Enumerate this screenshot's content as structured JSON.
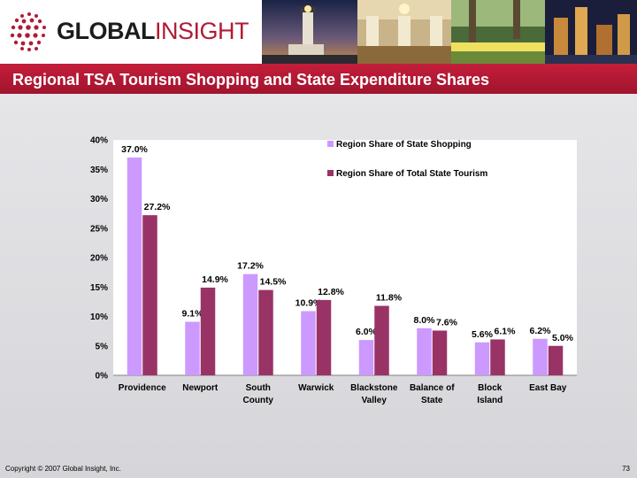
{
  "header": {
    "logo_word_1": "GLOBAL",
    "logo_word_2": "INSIGHT"
  },
  "title": "Regional TSA Tourism Shopping and State Expenditure Shares",
  "footer": {
    "copyright": "Copyright © 2007 Global Insight, Inc.",
    "page_number": "73"
  },
  "colors": {
    "brand_red": "#b01b36",
    "series_shopping": "#cc99ff",
    "series_tourism": "#993366"
  },
  "chart_data": {
    "type": "bar",
    "categories": [
      [
        "Providence"
      ],
      [
        "Newport"
      ],
      [
        "South",
        "County"
      ],
      [
        "Warwick"
      ],
      [
        "Blackstone",
        "Valley"
      ],
      [
        "Balance of",
        "State"
      ],
      [
        "Block",
        "Island"
      ],
      [
        "East Bay"
      ]
    ],
    "series": [
      {
        "name": "Region Share of State Shopping",
        "color": "#cc99ff",
        "values": [
          37.0,
          9.1,
          17.2,
          10.9,
          6.0,
          8.0,
          5.6,
          6.2
        ],
        "labels": [
          "37.0%",
          "9.1%",
          "17.2%",
          "10.9%",
          "6.0%",
          "8.0%",
          "5.6%",
          "6.2%"
        ]
      },
      {
        "name": "Region Share of Total State Tourism",
        "color": "#993366",
        "values": [
          27.2,
          14.9,
          14.5,
          12.8,
          11.8,
          7.6,
          6.1,
          5.0
        ],
        "labels": [
          "27.2%",
          "14.9%",
          "14.5%",
          "12.8%",
          "11.8%",
          "7.6%",
          "6.1%",
          "5.0%"
        ]
      }
    ],
    "ylim": [
      0,
      40
    ],
    "yticks": [
      "0%",
      "5%",
      "10%",
      "15%",
      "20%",
      "25%",
      "30%",
      "35%",
      "40%"
    ],
    "grid": false,
    "legend_position": "top-right"
  }
}
